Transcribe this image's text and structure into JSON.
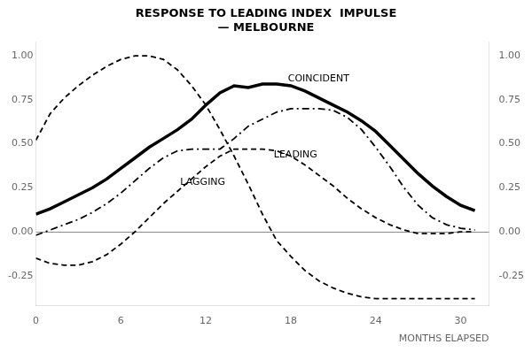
{
  "chart_data": {
    "type": "line",
    "title": "RESPONSE TO LEADING INDEX  IMPULSE",
    "subtitle": "— MELBOURNE",
    "x_label": "MONTHS ELAPSED",
    "x": [
      0,
      1,
      2,
      3,
      4,
      5,
      6,
      7,
      8,
      9,
      10,
      11,
      12,
      13,
      14,
      15,
      16,
      17,
      18,
      19,
      20,
      21,
      22,
      23,
      24,
      25,
      26,
      27,
      28,
      29,
      30,
      31
    ],
    "series": [
      {
        "color": "#000000",
        "line_style": "dashed",
        "values": [
          0.52,
          0.67,
          0.76,
          0.83,
          0.89,
          0.94,
          0.98,
          1.0,
          1.0,
          0.98,
          0.92,
          0.83,
          0.72,
          0.58,
          0.43,
          0.27,
          0.1,
          -0.05,
          -0.14,
          -0.22,
          -0.28,
          -0.32,
          -0.35,
          -0.37,
          -0.38,
          -0.38,
          -0.38,
          -0.38,
          -0.38,
          -0.38,
          -0.38,
          -0.38
        ]
      },
      {
        "color": "#000000",
        "line_style": "solid",
        "values": [
          0.1,
          0.13,
          0.17,
          0.21,
          0.25,
          0.3,
          0.36,
          0.42,
          0.48,
          0.53,
          0.58,
          0.64,
          0.72,
          0.79,
          0.83,
          0.82,
          0.84,
          0.84,
          0.83,
          0.8,
          0.76,
          0.72,
          0.68,
          0.63,
          0.57,
          0.49,
          0.41,
          0.33,
          0.26,
          0.2,
          0.15,
          0.12
        ]
      },
      {
        "color": "#000000",
        "line_style": "dashdot",
        "values": [
          -0.02,
          0.01,
          0.04,
          0.07,
          0.11,
          0.16,
          0.22,
          0.29,
          0.36,
          0.42,
          0.46,
          0.47,
          0.47,
          0.47,
          0.53,
          0.6,
          0.64,
          0.68,
          0.7,
          0.7,
          0.7,
          0.69,
          0.65,
          0.58,
          0.48,
          0.37,
          0.25,
          0.15,
          0.08,
          0.04,
          0.02,
          0.01
        ]
      },
      {
        "color": "#000000",
        "line_style": "dashed",
        "values": [
          -0.15,
          -0.18,
          -0.19,
          -0.19,
          -0.17,
          -0.13,
          -0.07,
          0.0,
          0.08,
          0.16,
          0.23,
          0.3,
          0.37,
          0.43,
          0.47,
          0.47,
          0.47,
          0.46,
          0.43,
          0.38,
          0.32,
          0.26,
          0.19,
          0.13,
          0.08,
          0.04,
          0.01,
          -0.01,
          -0.01,
          -0.01,
          0.0,
          0.0
        ]
      }
    ],
    "annotations": [
      {
        "text": "COINCIDENT",
        "x": 17.8,
        "y": 0.855
      },
      {
        "text": "LEADING",
        "x": 16.8,
        "y": 0.42
      },
      {
        "text": "LAGGING",
        "x": 10.2,
        "y": 0.265
      }
    ],
    "xlim": [
      0,
      32
    ],
    "xticks": [
      0,
      6,
      12,
      18,
      24,
      30
    ],
    "ylim": [
      -0.42,
      1.08
    ],
    "yticks": [
      -0.25,
      {
        "value": 0,
        "label": "0.00"
      },
      0.25,
      {
        "value": 0.5,
        "label": "0.50"
      },
      0.75,
      {
        "value": 1,
        "label": "1.00"
      }
    ],
    "y2lim": [
      -0.42,
      1.08
    ],
    "y2ticks": [
      -0.25,
      {
        "value": 0,
        "label": "0.00"
      },
      0.25,
      {
        "value": 0.5,
        "label": "0.50"
      },
      0.75,
      {
        "value": 1,
        "label": "1.00"
      }
    ],
    "grid": false
  }
}
